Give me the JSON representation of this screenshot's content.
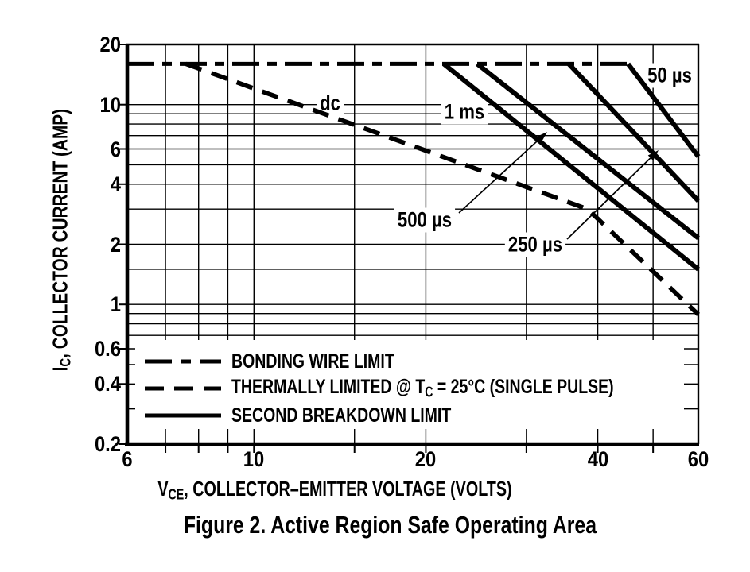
{
  "figure": {
    "caption": "Figure 2. Active Region Safe Operating Area"
  },
  "chart_data": {
    "type": "line",
    "title": "Figure 2. Active Region Safe Operating Area",
    "x_axis": {
      "label_pre": "V",
      "label_sub": "CE",
      "label_post": ", COLLECTOR–EMITTER VOLTAGE (VOLTS)",
      "scale": "log",
      "range": [
        6,
        60
      ],
      "tick_labels": [
        "6",
        "10",
        "20",
        "40",
        "60"
      ],
      "minor_gridlines": [
        7,
        8,
        9,
        10,
        15,
        20,
        30,
        40,
        50
      ],
      "minor_ticks": [
        7,
        8,
        9,
        10,
        15,
        20,
        30,
        40,
        50
      ]
    },
    "y_axis": {
      "label_pre": "I",
      "label_sub": "C",
      "label_post": ", COLLECTOR CURRENT (AMP)",
      "scale": "log",
      "range": [
        0.2,
        20
      ],
      "tick_labels": [
        "20",
        "10",
        "6",
        "4",
        "2",
        "1",
        "0.6",
        "0.4",
        "0.2"
      ],
      "minor_gridlines": [
        10,
        9,
        8,
        7,
        6,
        5,
        4,
        3,
        2,
        1.5,
        1,
        0.9,
        0.8,
        0.7,
        0.6,
        0.5,
        0.4,
        0.3
      ]
    },
    "grid": true,
    "legend_position": "inside-bottom-left",
    "series": [
      {
        "name": "bonding_wire_limit",
        "label": "",
        "style": "dashdot",
        "points": [
          [
            6,
            16
          ],
          [
            45,
            16
          ]
        ]
      },
      {
        "name": "dc_thermal_limit",
        "label": "dc",
        "style": "dashed",
        "points": [
          [
            7.6,
            16
          ],
          [
            38.4,
            3.0
          ],
          [
            60,
            0.89
          ]
        ]
      },
      {
        "name": "pulse_1ms",
        "label": "1 ms",
        "style": "solid",
        "points": [
          [
            21.5,
            16
          ],
          [
            60,
            1.5
          ]
        ]
      },
      {
        "name": "pulse_500us",
        "label": "500 µs",
        "style": "solid",
        "points": [
          [
            24.6,
            16
          ],
          [
            60,
            2.15
          ]
        ]
      },
      {
        "name": "pulse_250us",
        "label": "250 µs",
        "style": "solid",
        "points": [
          [
            35.6,
            16
          ],
          [
            60,
            3.3
          ]
        ]
      },
      {
        "name": "pulse_50us",
        "label": "50 µs",
        "style": "solid",
        "points": [
          [
            45.2,
            16
          ],
          [
            60,
            5.5
          ]
        ]
      }
    ],
    "legend": [
      {
        "style": "dashdot",
        "label": "BONDING WIRE LIMIT"
      },
      {
        "style": "dashed",
        "label_pre": "THERMALLY LIMITED @ T",
        "label_sub": "C",
        "label_post": " = 25°C (SINGLE PULSE)"
      },
      {
        "style": "solid",
        "label": "SECOND BREAKDOWN LIMIT"
      }
    ],
    "colors": {
      "line": "#000000",
      "grid": "#000000",
      "background": "#ffffff"
    }
  }
}
